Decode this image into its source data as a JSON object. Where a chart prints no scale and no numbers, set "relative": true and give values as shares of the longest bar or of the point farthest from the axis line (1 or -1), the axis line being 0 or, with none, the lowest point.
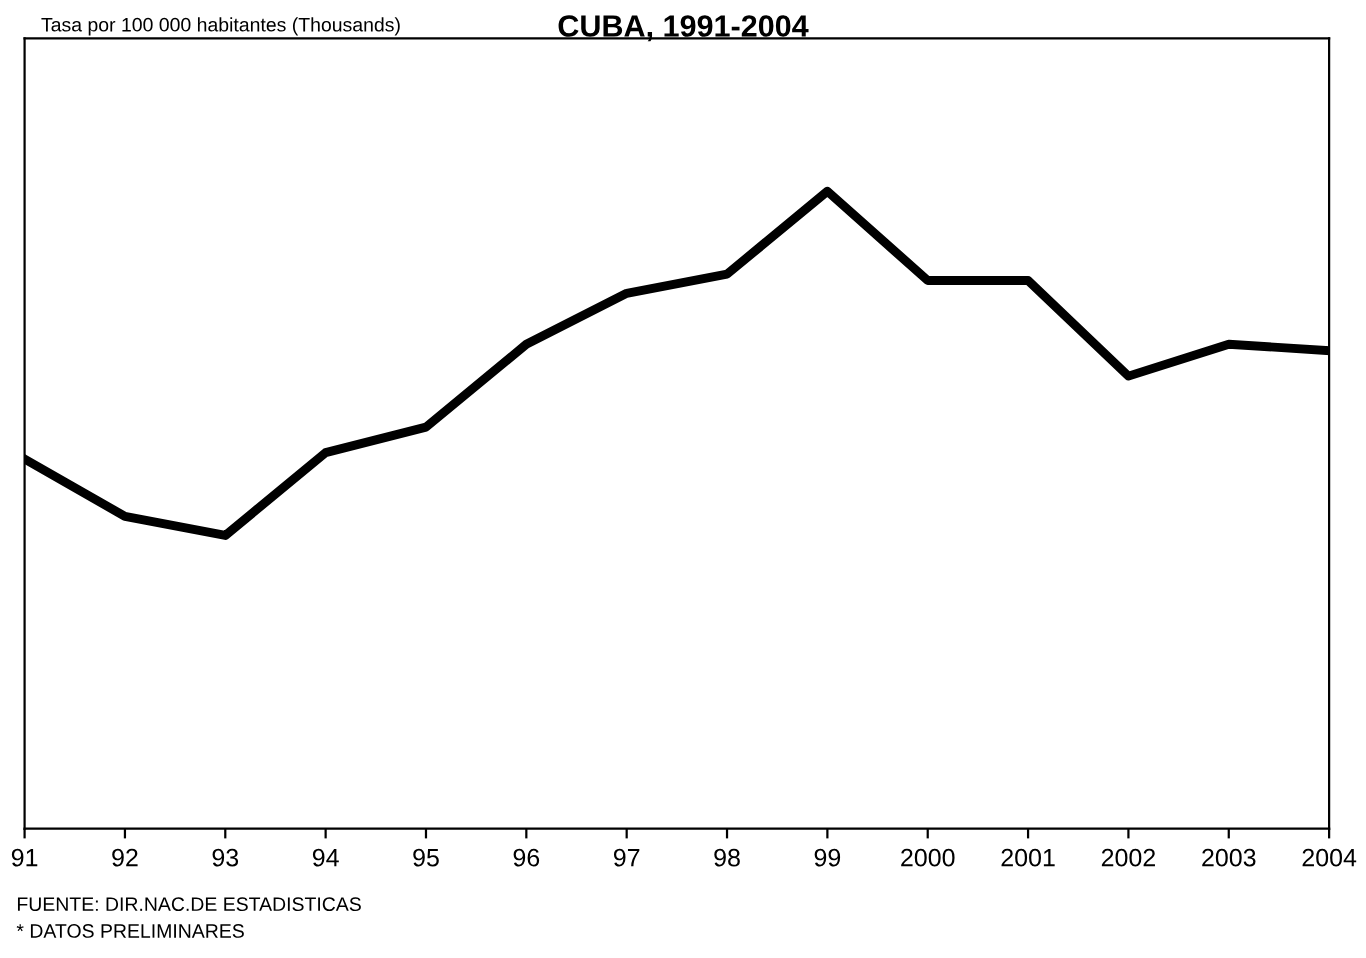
{
  "chart_data": {
    "type": "line",
    "title": "CUBA, 1991-2004",
    "categories": [
      "91",
      "92",
      "93",
      "94",
      "95",
      "96",
      "97",
      "98",
      "99",
      "2000",
      "2001",
      "2002",
      "2003",
      "2004"
    ],
    "relative": true,
    "series": [
      {
        "color": "#000000",
        "values": [
          0.58,
          0.49,
          0.46,
          0.59,
          0.63,
          0.76,
          0.84,
          0.87,
          1,
          0.86,
          0.86,
          0.71,
          0.76,
          0.75
        ]
      }
    ],
    "annotations": [
      "Tasa por 100 000 habitantes (Thousands)",
      "FUENTE: DIR.NAC.DE ESTADISTICAS",
      "* DATOS PRELIMINARES"
    ],
    "grid": false,
    "legend": false,
    "marker": "none",
    "line_style": "solid"
  }
}
